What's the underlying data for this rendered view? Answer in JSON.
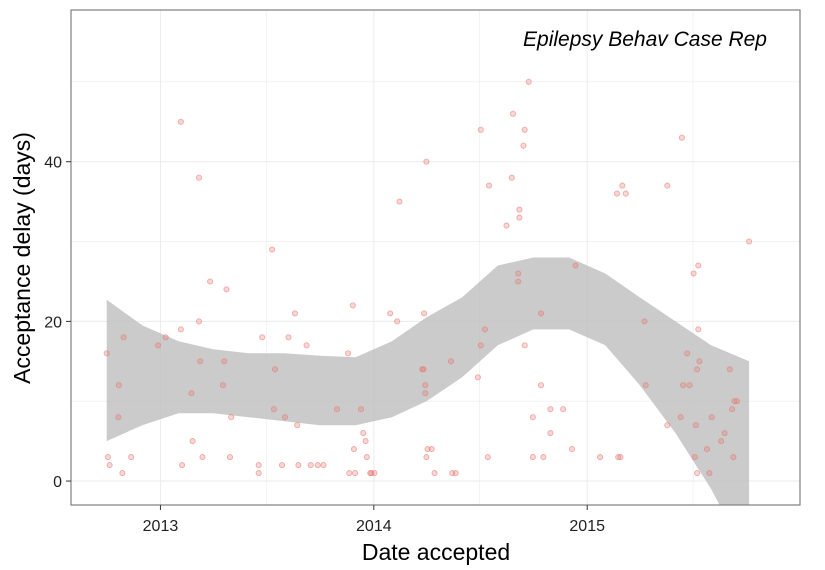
{
  "chart_data": {
    "type": "scatter",
    "title": "",
    "annotation": "Epilepsy Behav Case Rep",
    "xlabel": "Date accepted",
    "ylabel": "Acceptance delay (days)",
    "x_ticks": [
      "2013",
      "2014",
      "2015"
    ],
    "y_ticks": [
      "0",
      "20",
      "40"
    ],
    "x_range": [
      "2012-08-01",
      "2015-12-31"
    ],
    "ylim": [
      -3,
      59
    ],
    "grid": true,
    "colors": {
      "points": "#e8766f",
      "smooth_band": "#bdbdbd",
      "grid": "#ebebeb",
      "panel_border": "#7f7f7f"
    },
    "series": [
      {
        "points": [
          [
            "2012-10-01",
            16
          ],
          [
            "2012-10-03",
            3
          ],
          [
            "2012-10-06",
            2
          ],
          [
            "2012-10-22",
            12
          ],
          [
            "2012-10-21",
            8
          ],
          [
            "2012-10-28",
            1
          ],
          [
            "2012-10-30",
            18
          ],
          [
            "2012-11-12",
            3
          ],
          [
            "2012-12-28",
            17
          ],
          [
            "2013-01-10",
            18
          ],
          [
            "2013-02-05",
            19
          ],
          [
            "2013-02-05",
            45
          ],
          [
            "2013-02-07",
            2
          ],
          [
            "2013-02-23",
            11
          ],
          [
            "2013-02-25",
            5
          ],
          [
            "2013-03-08",
            38
          ],
          [
            "2013-03-08",
            20
          ],
          [
            "2013-03-10",
            15
          ],
          [
            "2013-03-14",
            3
          ],
          [
            "2013-03-27",
            25
          ],
          [
            "2013-04-18",
            12
          ],
          [
            "2013-04-20",
            15
          ],
          [
            "2013-04-24",
            24
          ],
          [
            "2013-04-30",
            3
          ],
          [
            "2013-05-02",
            8
          ],
          [
            "2013-06-18",
            2
          ],
          [
            "2013-06-18",
            1
          ],
          [
            "2013-06-24",
            18
          ],
          [
            "2013-07-11",
            29
          ],
          [
            "2013-07-14",
            9
          ],
          [
            "2013-07-16",
            14
          ],
          [
            "2013-07-28",
            2
          ],
          [
            "2013-08-02",
            8
          ],
          [
            "2013-08-08",
            18
          ],
          [
            "2013-08-19",
            21
          ],
          [
            "2013-08-23",
            7
          ],
          [
            "2013-08-25",
            2
          ],
          [
            "2013-09-08",
            17
          ],
          [
            "2013-09-15",
            2
          ],
          [
            "2013-09-27",
            2
          ],
          [
            "2013-10-07",
            2
          ],
          [
            "2013-10-30",
            9
          ],
          [
            "2013-11-18",
            16
          ],
          [
            "2013-11-20",
            1
          ],
          [
            "2013-11-26",
            22
          ],
          [
            "2013-11-28",
            4
          ],
          [
            "2013-11-30",
            1
          ],
          [
            "2013-12-10",
            9
          ],
          [
            "2013-12-14",
            6
          ],
          [
            "2013-12-18",
            5
          ],
          [
            "2013-12-20",
            3
          ],
          [
            "2013-12-26",
            1
          ],
          [
            "2013-12-28",
            1
          ],
          [
            "2014-01-02",
            1
          ],
          [
            "2014-01-29",
            21
          ],
          [
            "2014-02-10",
            20
          ],
          [
            "2014-02-14",
            35
          ],
          [
            "2014-03-25",
            14
          ],
          [
            "2014-03-27",
            14
          ],
          [
            "2014-03-28",
            21
          ],
          [
            "2014-03-30",
            12
          ],
          [
            "2014-03-30",
            11
          ],
          [
            "2014-04-01",
            40
          ],
          [
            "2014-04-01",
            3
          ],
          [
            "2014-04-03",
            4
          ],
          [
            "2014-04-10",
            4
          ],
          [
            "2014-04-15",
            1
          ],
          [
            "2014-05-13",
            15
          ],
          [
            "2014-05-15",
            1
          ],
          [
            "2014-05-21",
            1
          ],
          [
            "2014-06-28",
            13
          ],
          [
            "2014-07-03",
            44
          ],
          [
            "2014-07-03",
            17
          ],
          [
            "2014-07-10",
            19
          ],
          [
            "2014-07-15",
            3
          ],
          [
            "2014-07-17",
            37
          ],
          [
            "2014-08-16",
            32
          ],
          [
            "2014-08-25",
            38
          ],
          [
            "2014-08-27",
            46
          ],
          [
            "2014-09-05",
            26
          ],
          [
            "2014-09-05",
            25
          ],
          [
            "2014-09-07",
            34
          ],
          [
            "2014-09-07",
            33
          ],
          [
            "2014-09-14",
            42
          ],
          [
            "2014-09-16",
            44
          ],
          [
            "2014-09-16",
            17
          ],
          [
            "2014-09-23",
            50
          ],
          [
            "2014-09-30",
            8
          ],
          [
            "2014-09-30",
            3
          ],
          [
            "2014-10-14",
            21
          ],
          [
            "2014-10-14",
            12
          ],
          [
            "2014-10-18",
            3
          ],
          [
            "2014-10-30",
            9
          ],
          [
            "2014-10-30",
            6
          ],
          [
            "2014-11-21",
            9
          ],
          [
            "2014-12-06",
            4
          ],
          [
            "2014-12-12",
            27
          ],
          [
            "2015-01-23",
            3
          ],
          [
            "2015-02-21",
            36
          ],
          [
            "2015-02-23",
            3
          ],
          [
            "2015-02-27",
            3
          ],
          [
            "2015-03-02",
            37
          ],
          [
            "2015-03-08",
            36
          ],
          [
            "2015-04-09",
            20
          ],
          [
            "2015-04-11",
            12
          ],
          [
            "2015-05-18",
            7
          ],
          [
            "2015-05-18",
            37
          ],
          [
            "2015-06-10",
            8
          ],
          [
            "2015-06-12",
            43
          ],
          [
            "2015-06-14",
            12
          ],
          [
            "2015-06-21",
            16
          ],
          [
            "2015-06-25",
            12
          ],
          [
            "2015-07-02",
            26
          ],
          [
            "2015-07-04",
            3
          ],
          [
            "2015-07-06",
            7
          ],
          [
            "2015-07-08",
            1
          ],
          [
            "2015-07-08",
            14
          ],
          [
            "2015-07-10",
            27
          ],
          [
            "2015-07-10",
            19
          ],
          [
            "2015-07-12",
            15
          ],
          [
            "2015-07-25",
            4
          ],
          [
            "2015-07-29",
            1
          ],
          [
            "2015-08-02",
            8
          ],
          [
            "2015-08-18",
            5
          ],
          [
            "2015-08-24",
            6
          ],
          [
            "2015-09-02",
            14
          ],
          [
            "2015-09-06",
            9
          ],
          [
            "2015-09-08",
            3
          ],
          [
            "2015-09-10",
            10
          ],
          [
            "2015-09-14",
            10
          ],
          [
            "2015-10-05",
            30
          ]
        ]
      }
    ],
    "smooth_band": {
      "x": [
        "2012-10-01",
        "2012-12-01",
        "2013-02-01",
        "2013-04-01",
        "2013-06-01",
        "2013-08-01",
        "2013-10-01",
        "2013-12-01",
        "2014-02-01",
        "2014-04-01",
        "2014-06-01",
        "2014-08-01",
        "2014-10-01",
        "2014-12-01",
        "2015-02-01",
        "2015-04-01",
        "2015-06-01",
        "2015-08-01",
        "2015-10-05"
      ],
      "lower": [
        5,
        7,
        8.5,
        8.5,
        8,
        7.5,
        7,
        7,
        8,
        10,
        13,
        17,
        19,
        19,
        17,
        12,
        6,
        -1,
        -10
      ],
      "upper": [
        22.7,
        19.5,
        17.5,
        16.5,
        16,
        16,
        15.7,
        15.5,
        17.5,
        20.5,
        23,
        27,
        28,
        28,
        26,
        23,
        20,
        17,
        15
      ]
    }
  }
}
